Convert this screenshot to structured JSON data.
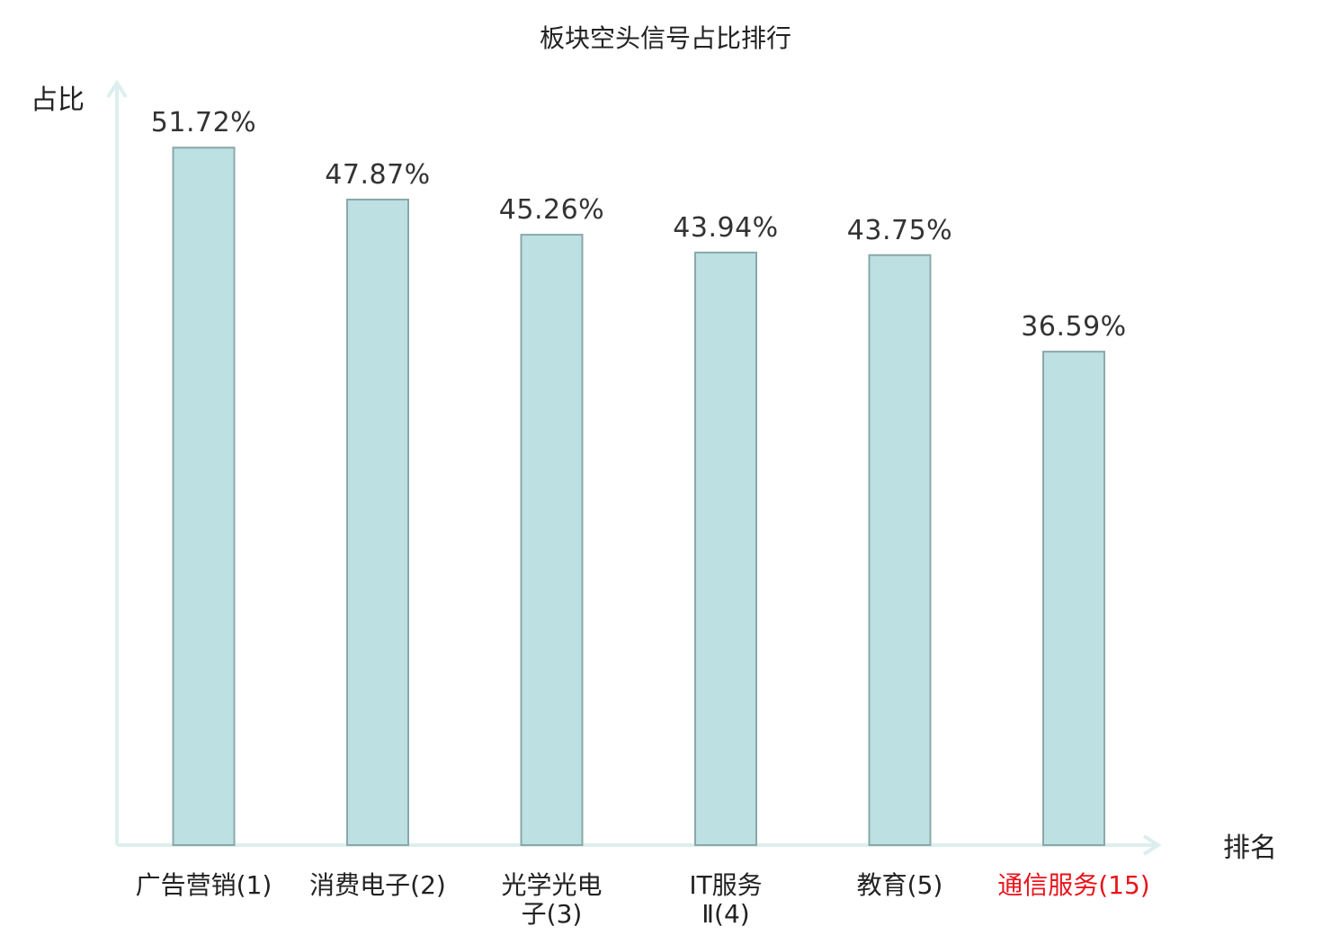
{
  "chart_data": {
    "type": "bar",
    "title": "板块空头信号占比排行",
    "ylabel": "占比",
    "xlabel": "排名",
    "ylim": [
      0,
      60
    ],
    "categories": [
      {
        "lines": [
          "广告营销(1)"
        ],
        "highlight": false
      },
      {
        "lines": [
          "消费电子(2)"
        ],
        "highlight": false
      },
      {
        "lines": [
          "光学光电",
          "子(3)"
        ],
        "highlight": false
      },
      {
        "lines": [
          "IT服务",
          "Ⅱ(4)"
        ],
        "highlight": false
      },
      {
        "lines": [
          "教育(5)"
        ],
        "highlight": false
      },
      {
        "lines": [
          "通信服务(15)"
        ],
        "highlight": true
      }
    ],
    "values": [
      51.72,
      47.87,
      45.26,
      43.94,
      43.75,
      36.59
    ],
    "value_labels": [
      "51.72%",
      "47.87%",
      "45.26%",
      "43.94%",
      "43.75%",
      "36.59%"
    ],
    "grid": false,
    "colors": {
      "bar_fill": "#bde0e2",
      "bar_stroke": "#8aa8aa",
      "axis": "#dcefee",
      "label": "#222222",
      "highlight": "#e8141c"
    }
  }
}
